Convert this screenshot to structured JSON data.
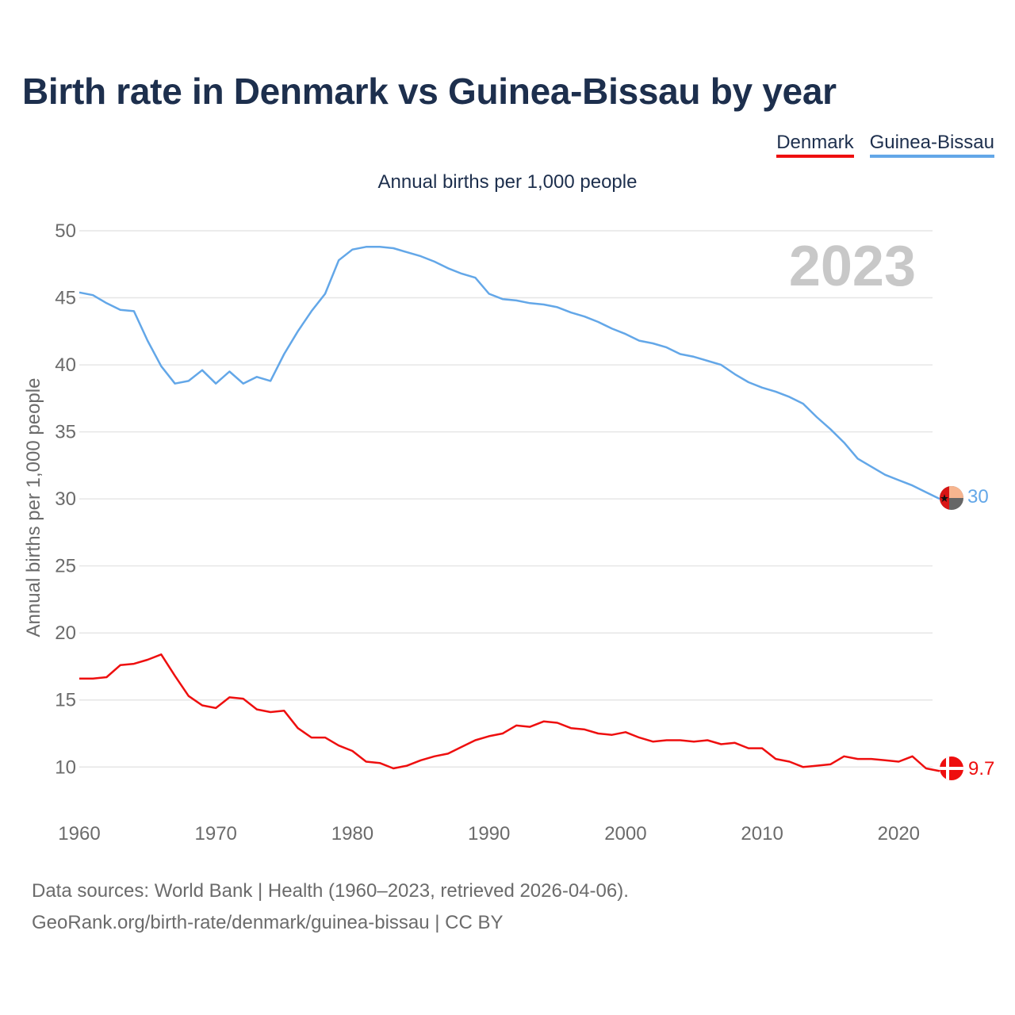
{
  "title": "Birth rate in Denmark vs Guinea-Bissau by year",
  "legend": {
    "denmark": "Denmark",
    "guinea_bissau": "Guinea-Bissau"
  },
  "subtitle": "Annual births per 1,000 people",
  "year_watermark": "2023",
  "colors": {
    "denmark": "#ee0f0f",
    "guinea_bissau": "#63a7e8",
    "title": "#1d2f4d",
    "axis_text": "#6b6b6b",
    "grid": "#e6e6e6",
    "watermark": "#c8c8c8"
  },
  "chart_data": {
    "type": "line",
    "title": "Birth rate in Denmark vs Guinea-Bissau by year",
    "ylabel": "Annual births per 1,000 people",
    "xlabel": "",
    "xlim": [
      1960,
      2023
    ],
    "ylim": [
      7,
      50
    ],
    "yticks": [
      10,
      15,
      20,
      25,
      30,
      35,
      40,
      45,
      50
    ],
    "xticks": [
      1960,
      1970,
      1980,
      1990,
      2000,
      2010,
      2020
    ],
    "x": [
      1960,
      1961,
      1962,
      1963,
      1964,
      1965,
      1966,
      1967,
      1968,
      1969,
      1970,
      1971,
      1972,
      1973,
      1974,
      1975,
      1976,
      1977,
      1978,
      1979,
      1980,
      1981,
      1982,
      1983,
      1984,
      1985,
      1986,
      1987,
      1988,
      1989,
      1990,
      1991,
      1992,
      1993,
      1994,
      1995,
      1996,
      1997,
      1998,
      1999,
      2000,
      2001,
      2002,
      2003,
      2004,
      2005,
      2006,
      2007,
      2008,
      2009,
      2010,
      2011,
      2012,
      2013,
      2014,
      2015,
      2016,
      2017,
      2018,
      2019,
      2020,
      2021,
      2022,
      2023
    ],
    "series": [
      {
        "name": "Denmark",
        "end_label": "9.7",
        "values": [
          16.6,
          16.6,
          16.7,
          17.6,
          17.7,
          18.0,
          18.4,
          16.8,
          15.3,
          14.6,
          14.4,
          15.2,
          15.1,
          14.3,
          14.1,
          14.2,
          12.9,
          12.2,
          12.2,
          11.6,
          11.2,
          10.4,
          10.3,
          9.9,
          10.1,
          10.5,
          10.8,
          11.0,
          11.5,
          12.0,
          12.3,
          12.5,
          13.1,
          13.0,
          13.4,
          13.3,
          12.9,
          12.8,
          12.5,
          12.4,
          12.6,
          12.2,
          11.9,
          12.0,
          12.0,
          11.9,
          12.0,
          11.7,
          11.8,
          11.4,
          11.4,
          10.6,
          10.4,
          10.0,
          10.1,
          10.2,
          10.8,
          10.6,
          10.6,
          10.5,
          10.4,
          10.8,
          9.9,
          9.7
        ]
      },
      {
        "name": "Guinea-Bissau",
        "end_label": "30",
        "values": [
          45.4,
          45.2,
          44.6,
          44.1,
          44.0,
          41.8,
          39.9,
          38.6,
          38.8,
          39.6,
          38.6,
          39.5,
          38.6,
          39.1,
          38.8,
          40.8,
          42.5,
          44.0,
          45.3,
          47.8,
          48.6,
          48.8,
          48.8,
          48.7,
          48.4,
          48.1,
          47.7,
          47.2,
          46.8,
          46.5,
          45.3,
          44.9,
          44.8,
          44.6,
          44.5,
          44.3,
          43.9,
          43.6,
          43.2,
          42.7,
          42.3,
          41.8,
          41.6,
          41.3,
          40.8,
          40.6,
          40.3,
          40.0,
          39.3,
          38.7,
          38.3,
          38.0,
          37.6,
          37.1,
          36.1,
          35.2,
          34.2,
          33.0,
          32.4,
          31.8,
          31.4,
          31.0,
          30.5,
          30.0
        ]
      }
    ]
  },
  "footer": {
    "line1": "Data sources: World Bank | Health (1960–2023, retrieved 2026-04-06).",
    "line2": "GeoRank.org/birth-rate/denmark/guinea-bissau | CC BY"
  }
}
